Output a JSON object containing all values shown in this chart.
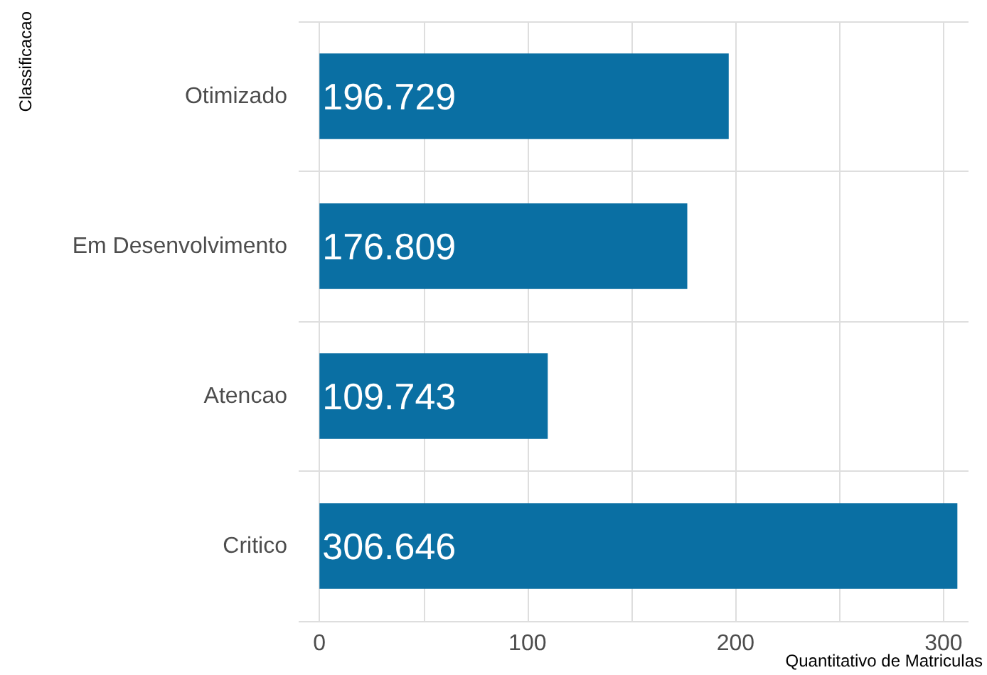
{
  "chart_data": {
    "type": "bar",
    "orientation": "horizontal",
    "xlabel": "Quantitativo de Matriculas",
    "ylabel": "Classificacao",
    "categories": [
      "Otimizado",
      "Em Desenvolvimento",
      "Atencao",
      "Critico"
    ],
    "values": [
      196.729,
      176.809,
      109.743,
      306.646
    ],
    "value_labels": [
      "196.729",
      "176.809",
      "109.743",
      "306.646"
    ],
    "color": "#0a6fa3",
    "xlim": [
      -10,
      312
    ],
    "xticks": [
      0,
      {
        "value": 50,
        "label": null
      },
      100,
      {
        "value": 150,
        "label": null
      },
      200,
      {
        "value": 250,
        "label": null
      },
      300
    ],
    "grid": true
  }
}
